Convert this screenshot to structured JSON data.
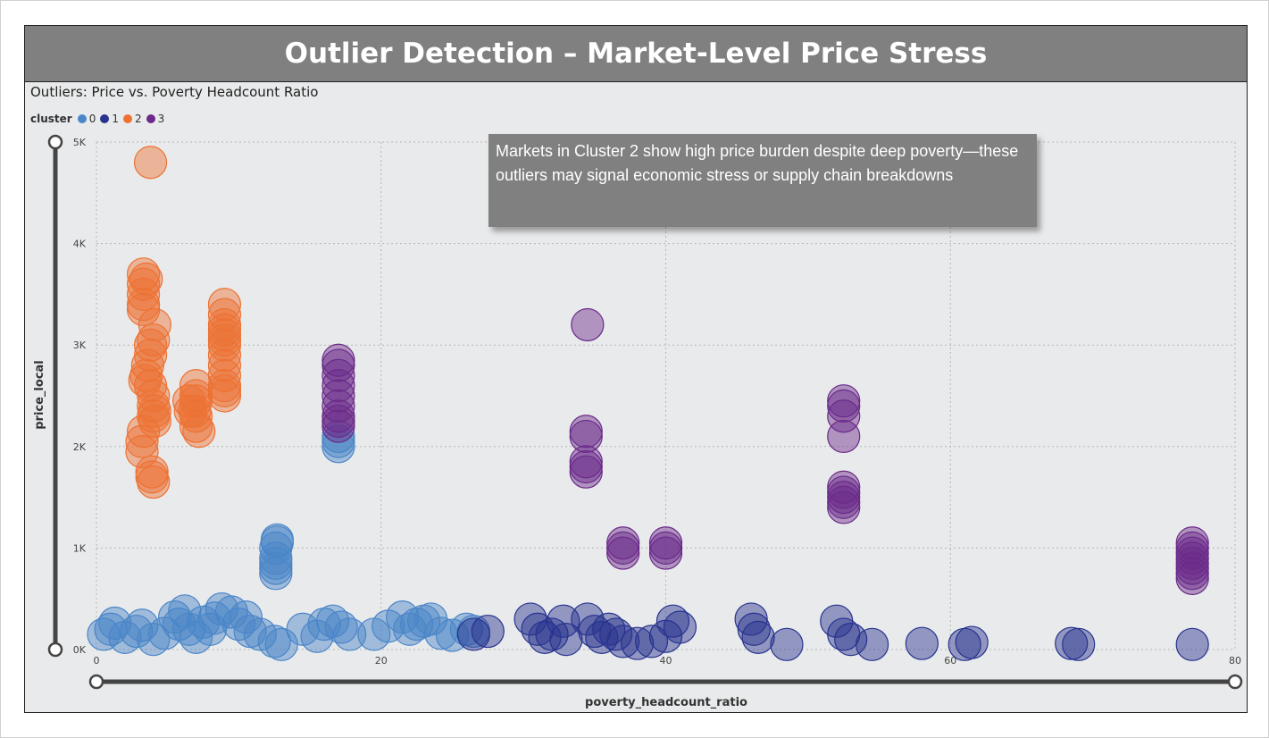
{
  "header": {
    "title": "Outlier Detection – Market-Level Price Stress"
  },
  "visual": {
    "title": "Outliers: Price vs. Poverty Headcount Ratio",
    "legend_title": "cluster",
    "annotation": "Markets in Cluster 2 show high price burden despite deep poverty—these outliers may signal economic stress or supply chain breakdowns"
  },
  "chart_data": {
    "type": "scatter",
    "xlabel": "poverty_headcount_ratio",
    "ylabel": "price_local",
    "xlim": [
      0,
      80
    ],
    "ylim": [
      0,
      5000
    ],
    "x_ticks": [
      {
        "value": 0,
        "label": "0"
      },
      {
        "value": 20,
        "label": "20"
      },
      {
        "value": 40,
        "label": "40"
      },
      {
        "value": 60,
        "label": "60"
      },
      {
        "value": 80,
        "label": "80"
      }
    ],
    "y_ticks": [
      {
        "value": 0,
        "label": "0K"
      },
      {
        "value": 1000,
        "label": "1K"
      },
      {
        "value": 2000,
        "label": "2K"
      },
      {
        "value": 3000,
        "label": "3K"
      },
      {
        "value": 4000,
        "label": "4K"
      },
      {
        "value": 5000,
        "label": "5K"
      }
    ],
    "grid": true,
    "legend_position": "top-left",
    "series": [
      {
        "name": "0",
        "color": "#4a86c8",
        "points": [
          [
            0.5,
            150
          ],
          [
            1.0,
            200
          ],
          [
            1.3,
            260
          ],
          [
            2.0,
            120
          ],
          [
            2.8,
            180
          ],
          [
            3.2,
            240
          ],
          [
            4.0,
            100
          ],
          [
            4.8,
            160
          ],
          [
            5.5,
            320
          ],
          [
            5.8,
            250
          ],
          [
            6.2,
            380
          ],
          [
            6.5,
            200
          ],
          [
            7.0,
            120
          ],
          [
            7.5,
            270
          ],
          [
            8.0,
            200
          ],
          [
            8.3,
            310
          ],
          [
            8.8,
            400
          ],
          [
            9.5,
            370
          ],
          [
            10.0,
            250
          ],
          [
            10.5,
            320
          ],
          [
            10.8,
            180
          ],
          [
            11.5,
            150
          ],
          [
            12.5,
            80
          ],
          [
            13.0,
            50
          ],
          [
            14.5,
            200
          ],
          [
            15.5,
            130
          ],
          [
            16.0,
            250
          ],
          [
            16.6,
            280
          ],
          [
            17.2,
            220
          ],
          [
            17.8,
            150
          ],
          [
            19.5,
            150
          ],
          [
            20.5,
            230
          ],
          [
            21.5,
            320
          ],
          [
            22.0,
            200
          ],
          [
            22.5,
            250
          ],
          [
            23.0,
            280
          ],
          [
            23.5,
            300
          ],
          [
            24.2,
            160
          ],
          [
            25.0,
            140
          ],
          [
            26.0,
            200
          ],
          [
            26.5,
            180
          ],
          [
            12.6,
            1000
          ],
          [
            12.6,
            900
          ],
          [
            12.6,
            800
          ],
          [
            12.6,
            750
          ],
          [
            12.6,
            850
          ],
          [
            12.7,
            1080
          ],
          [
            12.7,
            1060
          ],
          [
            17.0,
            2000
          ],
          [
            17.0,
            2050
          ],
          [
            17.0,
            2100
          ]
        ]
      },
      {
        "name": "1",
        "color": "#27338f",
        "points": [
          [
            26.5,
            150
          ],
          [
            27.5,
            180
          ],
          [
            30.5,
            300
          ],
          [
            31.0,
            200
          ],
          [
            31.5,
            120
          ],
          [
            32.0,
            150
          ],
          [
            32.8,
            280
          ],
          [
            33.0,
            100
          ],
          [
            34.5,
            300
          ],
          [
            35.0,
            180
          ],
          [
            35.5,
            120
          ],
          [
            36.0,
            200
          ],
          [
            36.5,
            150
          ],
          [
            37.0,
            80
          ],
          [
            38.0,
            60
          ],
          [
            39.0,
            80
          ],
          [
            40.0,
            130
          ],
          [
            40.5,
            280
          ],
          [
            41.0,
            220
          ],
          [
            46.0,
            300
          ],
          [
            46.2,
            200
          ],
          [
            46.5,
            120
          ],
          [
            48.5,
            50
          ],
          [
            52.0,
            280
          ],
          [
            52.5,
            150
          ],
          [
            53.0,
            100
          ],
          [
            54.5,
            50
          ],
          [
            58.0,
            60
          ],
          [
            61.0,
            50
          ],
          [
            61.5,
            70
          ],
          [
            68.5,
            60
          ],
          [
            69.0,
            50
          ],
          [
            77.0,
            50
          ]
        ]
      },
      {
        "name": "2",
        "color": "#ed7233",
        "points": [
          [
            3.8,
            4800
          ],
          [
            3.3,
            3700
          ],
          [
            3.3,
            3600
          ],
          [
            3.3,
            3500
          ],
          [
            3.3,
            3400
          ],
          [
            3.3,
            3350
          ],
          [
            3.5,
            3650
          ],
          [
            4.1,
            3200
          ],
          [
            4.0,
            3050
          ],
          [
            3.8,
            3000
          ],
          [
            3.8,
            2900
          ],
          [
            3.6,
            2800
          ],
          [
            3.5,
            2700
          ],
          [
            3.4,
            2650
          ],
          [
            3.8,
            2600
          ],
          [
            4.0,
            2500
          ],
          [
            4.0,
            2400
          ],
          [
            4.1,
            2350
          ],
          [
            4.0,
            2300
          ],
          [
            4.1,
            2250
          ],
          [
            3.3,
            2150
          ],
          [
            3.2,
            2050
          ],
          [
            3.2,
            1950
          ],
          [
            3.9,
            1750
          ],
          [
            3.9,
            1700
          ],
          [
            4.0,
            1650
          ],
          [
            7.0,
            2600
          ],
          [
            7.0,
            2500
          ],
          [
            7.0,
            2450
          ],
          [
            6.9,
            2350
          ],
          [
            7.0,
            2300
          ],
          [
            7.0,
            2200
          ],
          [
            7.2,
            2150
          ],
          [
            6.5,
            2450
          ],
          [
            6.6,
            2350
          ],
          [
            9.0,
            3400
          ],
          [
            9.0,
            3300
          ],
          [
            9.0,
            3200
          ],
          [
            9.0,
            3150
          ],
          [
            9.0,
            3100
          ],
          [
            9.0,
            3050
          ],
          [
            9.0,
            3000
          ],
          [
            9.0,
            2900
          ],
          [
            9.0,
            2800
          ],
          [
            9.0,
            2700
          ],
          [
            9.0,
            2600
          ],
          [
            9.0,
            2550
          ],
          [
            9.0,
            2500
          ]
        ]
      },
      {
        "name": "3",
        "color": "#6b2a8a",
        "points": [
          [
            17.0,
            2850
          ],
          [
            17.0,
            2800
          ],
          [
            17.0,
            2700
          ],
          [
            17.0,
            2600
          ],
          [
            17.0,
            2500
          ],
          [
            17.0,
            2400
          ],
          [
            17.0,
            2300
          ],
          [
            17.0,
            2250
          ],
          [
            17.0,
            2200
          ],
          [
            34.5,
            3200
          ],
          [
            34.4,
            2150
          ],
          [
            34.4,
            2100
          ],
          [
            34.4,
            1850
          ],
          [
            34.4,
            1800
          ],
          [
            34.4,
            1750
          ],
          [
            37.0,
            1050
          ],
          [
            37.0,
            1000
          ],
          [
            37.0,
            950
          ],
          [
            40.0,
            1050
          ],
          [
            40.0,
            1000
          ],
          [
            40.0,
            950
          ],
          [
            52.5,
            2450
          ],
          [
            52.5,
            2400
          ],
          [
            52.5,
            2300
          ],
          [
            52.5,
            2100
          ],
          [
            52.5,
            1600
          ],
          [
            52.5,
            1550
          ],
          [
            52.5,
            1500
          ],
          [
            52.5,
            1450
          ],
          [
            52.5,
            1400
          ],
          [
            77.0,
            1050
          ],
          [
            77.0,
            1000
          ],
          [
            77.0,
            950
          ],
          [
            77.0,
            900
          ],
          [
            77.0,
            850
          ],
          [
            77.0,
            800
          ],
          [
            77.0,
            750
          ],
          [
            77.0,
            700
          ]
        ]
      }
    ]
  }
}
